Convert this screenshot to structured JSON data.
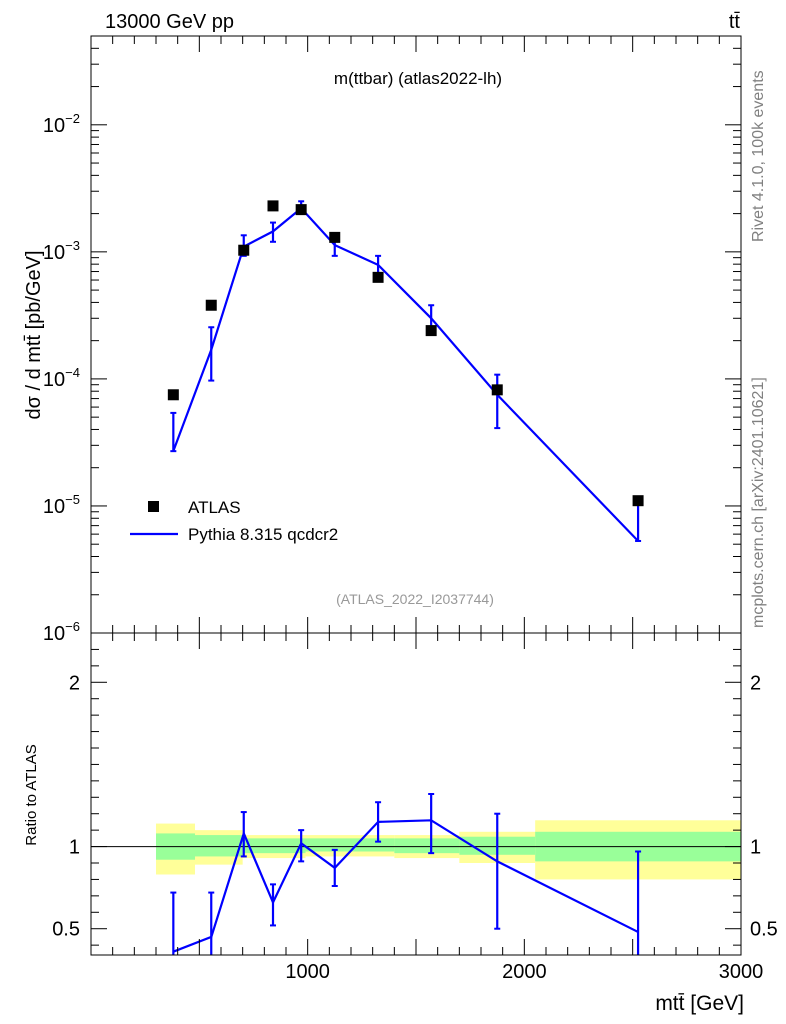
{
  "header": {
    "energy_label": "13000 GeV pp",
    "process_label": "tt̄"
  },
  "side_labels": {
    "rivet": "Rivet 4.1.0,  100k events",
    "mcplots": "mcplots.cern.ch [arXiv:2401.10621]"
  },
  "chart_data": [
    {
      "panel": "main",
      "type": "scatter",
      "title": "m(ttbar) (atlas2022-lh)",
      "watermark": "(ATLAS_2022_I2037744)",
      "ylabel": "dσ / d mtt̄ [pb/GeV]",
      "xlabel": "",
      "yscale": "log",
      "xlim": [
        0,
        3000
      ],
      "ylim": [
        1e-06,
        0.05
      ],
      "yticks": [
        1e-06,
        1e-05,
        0.0001,
        0.001,
        0.01
      ],
      "yticklabels": [
        {
          "base": "10",
          "exp": "−6"
        },
        {
          "base": "10",
          "exp": "−5"
        },
        {
          "base": "10",
          "exp": "−4"
        },
        {
          "base": "10",
          "exp": "−3"
        },
        {
          "base": "10",
          "exp": "−2"
        }
      ],
      "legend": [
        {
          "name": "ATLAS",
          "marker": "square"
        },
        {
          "name": "Pythia 8.315 qcdcr2",
          "marker": "line"
        }
      ],
      "series": [
        {
          "name": "ATLAS",
          "color": "#000000",
          "x": [
            380,
            555,
            705,
            840,
            970,
            1125,
            1325,
            1570,
            1875,
            2525
          ],
          "y": [
            7.5e-05,
            0.00038,
            0.00103,
            0.0023,
            0.00215,
            0.0013,
            0.00063,
            0.00024,
            8.2e-05,
            1.1e-05
          ]
        },
        {
          "name": "Pythia 8.315 qcdcr2",
          "color": "#0000ff",
          "x": [
            380,
            555,
            705,
            840,
            970,
            1125,
            1325,
            1570,
            1875,
            2525
          ],
          "y": [
            2.7e-05,
            0.00017,
            0.0011,
            0.00145,
            0.0022,
            0.00113,
            0.00079,
            0.0003,
            7.5e-05,
            5.3e-06
          ],
          "yerr_low": [
            2.7e-05,
            9.7e-05,
            0.00093,
            0.0012,
            0.002,
            0.00093,
            0.00066,
            0.00023,
            4.1e-05,
            5.3e-06
          ],
          "yerr_high": [
            5.4e-05,
            0.000255,
            0.00135,
            0.0017,
            0.0025,
            0.00133,
            0.00093,
            0.00038,
            0.000108,
            1.05e-05
          ]
        }
      ]
    },
    {
      "panel": "ratio",
      "type": "line",
      "ylabel": "Ratio to ATLAS",
      "xlabel": "mtt̄ [GeV]",
      "xlim": [
        0,
        3000
      ],
      "ylim": [
        0.34,
        2.3
      ],
      "xticks": [
        1000,
        2000,
        3000
      ],
      "xticklabels": [
        "1000",
        "2000",
        "3000"
      ],
      "yticks": [
        0.5,
        1,
        2
      ],
      "yticklabels": [
        "0.5",
        "1",
        "2"
      ],
      "bands": {
        "edges": [
          300,
          480,
          700,
          990,
          1400,
          1700,
          2050,
          3000
        ],
        "inner_low": [
          0.92,
          0.94,
          0.96,
          0.97,
          0.96,
          0.95,
          0.91
        ],
        "inner_high": [
          1.08,
          1.07,
          1.05,
          1.05,
          1.05,
          1.06,
          1.09
        ],
        "outer_low": [
          0.83,
          0.89,
          0.93,
          0.94,
          0.93,
          0.9,
          0.8
        ],
        "outer_high": [
          1.14,
          1.1,
          1.07,
          1.07,
          1.07,
          1.09,
          1.16
        ],
        "inner_color": "#99ff99",
        "outer_color": "#ffff99"
      },
      "series": [
        {
          "name": "Pythia 8.315 qcdcr2 / ATLAS",
          "color": "#0000ff",
          "x": [
            380,
            555,
            705,
            840,
            970,
            1125,
            1325,
            1570,
            1875,
            2525
          ],
          "y": [
            0.36,
            0.45,
            1.08,
            0.66,
            1.02,
            0.87,
            1.15,
            1.16,
            0.91,
            0.48
          ],
          "yerr_low": [
            0.0,
            0.0,
            0.94,
            0.52,
            0.91,
            0.76,
            1.03,
            0.96,
            0.5,
            0.0
          ],
          "yerr_high": [
            0.72,
            0.72,
            1.21,
            0.77,
            1.1,
            0.98,
            1.27,
            1.32,
            1.2,
            0.97
          ]
        }
      ]
    }
  ]
}
